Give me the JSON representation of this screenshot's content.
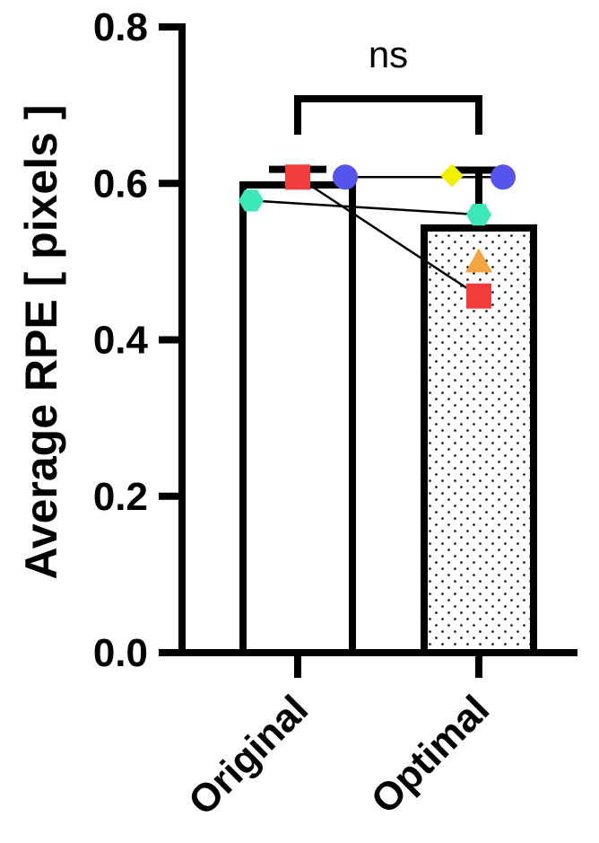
{
  "chart_data": {
    "type": "bar",
    "categories": [
      "Original",
      "Optimal"
    ],
    "values": [
      0.598,
      0.543
    ],
    "error_upper": [
      0.618,
      0.617
    ],
    "ylabel": "Average RPE [ pixels ]",
    "xlabel": "",
    "ylim": [
      0,
      0.8
    ],
    "yticks": [
      "0.0",
      "0.2",
      "0.4",
      "0.6",
      "0.8"
    ],
    "ytick_values": [
      0,
      0.2,
      0.4,
      0.6,
      0.8
    ],
    "significance": {
      "label": "ns",
      "between": [
        "Original",
        "Optimal"
      ]
    },
    "bar_patterns": [
      "none",
      "dots"
    ],
    "points": [
      {
        "shape": "square",
        "color": "#f23b3b",
        "values": [
          0.608,
          0.456
        ],
        "paired": true
      },
      {
        "shape": "circle",
        "color": "#5555ee",
        "values": [
          0.608,
          0.608
        ],
        "paired": true
      },
      {
        "shape": "hexagon",
        "color": "#3de8b8",
        "values": [
          0.578,
          0.56
        ],
        "paired": true
      },
      {
        "shape": "diamond",
        "color": "#f2ef00",
        "values": [
          null,
          0.61
        ],
        "paired": false
      },
      {
        "shape": "triangle",
        "color": "#f5a442",
        "values": [
          null,
          0.5
        ],
        "paired": false
      }
    ],
    "grid": false,
    "legend": "none"
  }
}
